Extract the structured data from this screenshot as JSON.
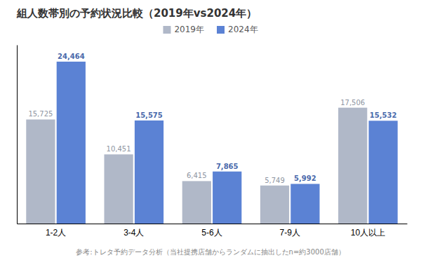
{
  "chart_data": {
    "type": "bar",
    "title": "組人数帯別の予約状況比較（2019年vs2024年）",
    "footnote": "参考:トレタ予約データ分析（当社提携店舗からランダムに抽出したn=約3000店舗）",
    "categories": [
      "1-2人",
      "3-4人",
      "5-6人",
      "7-9人",
      "10人以上"
    ],
    "series": [
      {
        "name": "2019年",
        "color": "#b0b8c8",
        "values": [
          15725,
          10451,
          6415,
          5749,
          17506
        ],
        "value_labels": [
          "15,725",
          "10,451",
          "6,415",
          "5,749",
          "17,506"
        ]
      },
      {
        "name": "2024年",
        "color": "#5b82d4",
        "values": [
          24464,
          15575,
          7865,
          5992,
          15532
        ],
        "value_labels": [
          "24,464",
          "15,575",
          "7,865",
          "5,992",
          "15,532"
        ]
      }
    ],
    "ylim": [
      0,
      27000
    ],
    "data_labels": true,
    "tick_labels": "x",
    "grid": false,
    "legend": "top"
  }
}
